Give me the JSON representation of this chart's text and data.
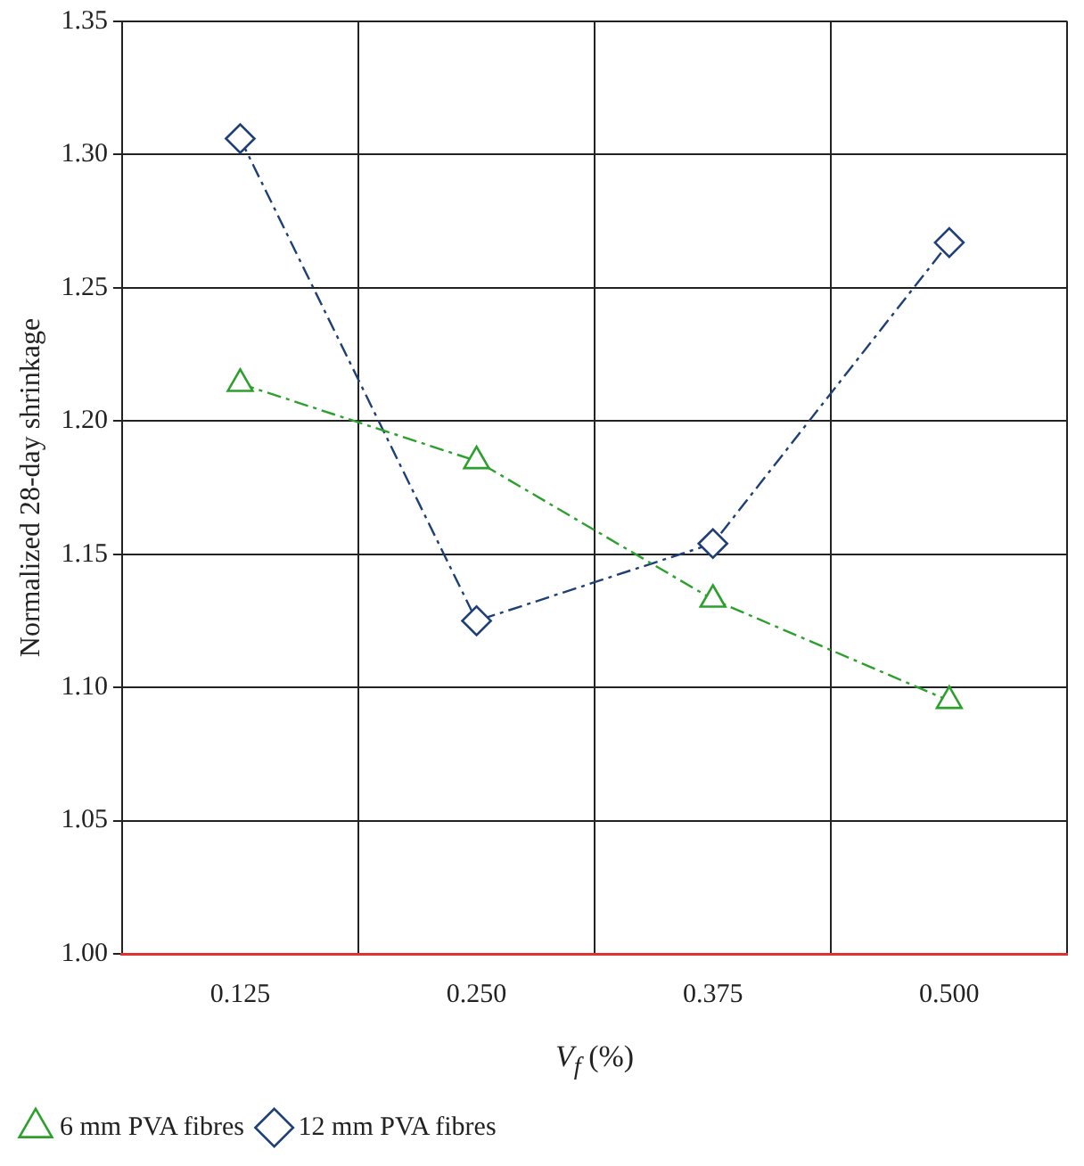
{
  "chart_data": {
    "type": "line",
    "xlabel": "V$_{f}$ (%)",
    "ylabel": "Normalized 28-day shrinkage",
    "categories": [
      "0.125",
      "0.250",
      "0.375",
      "0.500"
    ],
    "series": [
      {
        "name": "6 mm PVA fibres",
        "color": "#2ca02c",
        "values": [
          1.214,
          1.185,
          1.133,
          1.095
        ],
        "marker": "triangle"
      },
      {
        "name": "12 mm PVA fibres",
        "color": "#1f3f77",
        "values": [
          1.306,
          1.125,
          1.154,
          1.267
        ],
        "marker": "diamond"
      }
    ],
    "ylim": [
      1.0,
      1.35
    ],
    "yticks": [
      {
        "value": 1.0,
        "label": "1.00"
      },
      {
        "value": 1.05,
        "label": "1.05"
      },
      {
        "value": 1.1,
        "label": "1.10"
      },
      {
        "value": 1.15,
        "label": "1.15"
      },
      {
        "value": 1.2,
        "label": "1.20"
      },
      {
        "value": 1.25,
        "label": "1.25"
      },
      {
        "value": 1.3,
        "label": "1.30"
      },
      {
        "value": 1.35,
        "label": "1.35"
      }
    ],
    "grid": true,
    "legend": "bottom left",
    "line_style": "dashed"
  }
}
